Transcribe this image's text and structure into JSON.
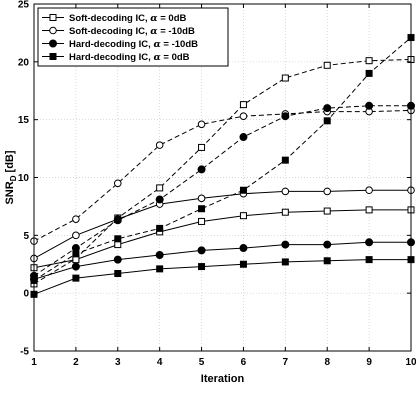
{
  "chart_data": {
    "type": "line",
    "xlabel": "Iteration",
    "ylabel_main": "SNR",
    "ylabel_sub": "D",
    "ylabel_unit": "[dB]",
    "x": [
      1,
      2,
      3,
      4,
      5,
      6,
      7,
      8,
      9,
      10
    ],
    "xlim": [
      1,
      10
    ],
    "ylim": [
      -5,
      25
    ],
    "xticks": [
      1,
      2,
      3,
      4,
      5,
      6,
      7,
      8,
      9,
      10
    ],
    "yticks": [
      -5,
      0,
      5,
      10,
      15,
      20,
      25
    ],
    "grid": true,
    "legend_position": "top-left",
    "series": [
      {
        "name": "Soft-decoding IC, α = 0dB",
        "legend": [
          "Soft-decoding IC, ",
          "α",
          " = 0dB"
        ],
        "marker": "square-open",
        "dash": "solid",
        "groups": [
          {
            "dash": "dashed",
            "values": [
              0.8,
              3.0,
              6.5,
              9.1,
              12.6,
              16.3,
              18.6,
              19.7,
              20.1,
              20.2
            ]
          },
          {
            "dash": "solid",
            "values": [
              2.2,
              2.9,
              4.2,
              5.3,
              6.2,
              6.7,
              7.0,
              7.1,
              7.2,
              7.2
            ]
          }
        ]
      },
      {
        "name": "Soft-decoding IC, α = -10dB",
        "legend": [
          "Soft-decoding IC, ",
          "α",
          " = -10dB"
        ],
        "marker": "circle-open",
        "dash": "solid",
        "groups": [
          {
            "dash": "dashed",
            "values": [
              4.5,
              6.4,
              9.5,
              12.8,
              14.6,
              15.3,
              15.5,
              15.7,
              15.7,
              15.8
            ]
          },
          {
            "dash": "solid",
            "values": [
              3.0,
              5.0,
              6.4,
              7.7,
              8.2,
              8.6,
              8.8,
              8.8,
              8.9,
              8.9
            ]
          }
        ]
      },
      {
        "name": "Hard-decoding IC, α = -10dB",
        "legend": [
          "Hard-decoding IC, ",
          "α",
          " = -10dB"
        ],
        "marker": "circle-filled",
        "dash": "solid",
        "groups": [
          {
            "dash": "dashed",
            "values": [
              1.5,
              3.9,
              6.3,
              8.1,
              10.7,
              13.5,
              15.3,
              16.0,
              16.2,
              16.2
            ]
          },
          {
            "dash": "solid",
            "values": [
              1.2,
              2.3,
              2.9,
              3.3,
              3.7,
              3.9,
              4.2,
              4.2,
              4.4,
              4.4
            ]
          }
        ]
      },
      {
        "name": "Hard-decoding IC, α = 0dB",
        "legend": [
          "Hard-decoding IC, ",
          "α",
          " = 0dB"
        ],
        "marker": "square-filled",
        "dash": "solid",
        "groups": [
          {
            "dash": "dashed",
            "values": [
              1.1,
              3.4,
              4.7,
              5.6,
              7.3,
              8.9,
              11.5,
              14.9,
              19.0,
              22.1
            ]
          },
          {
            "dash": "solid",
            "values": [
              -0.1,
              1.3,
              1.7,
              2.1,
              2.3,
              2.5,
              2.7,
              2.8,
              2.9,
              2.9
            ]
          }
        ]
      }
    ]
  }
}
